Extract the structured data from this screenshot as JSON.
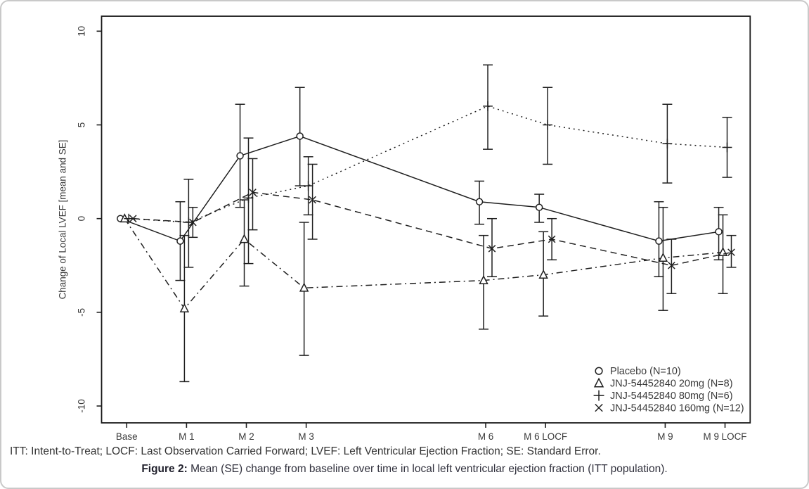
{
  "figure": {
    "footnote": "ITT: Intent-to-Treat; LOCF: Last Observation Carried Forward; LVEF: Left Ventricular Ejection Fraction; SE: Standard Error.",
    "caption_label": "Figure 2:",
    "caption_text": " Mean (SE) change from baseline over time in local left ventricular ejection fraction (ITT population)."
  },
  "chart_data": {
    "type": "line",
    "title": "",
    "xlabel": "",
    "ylabel": "Change of Local LVEF [mean and SE]",
    "ylim": [
      -10.9,
      10.8
    ],
    "yticks": [
      10,
      5,
      0,
      -5,
      -10
    ],
    "ytick_labels": [
      "10",
      "5",
      "0",
      "-5",
      "-10"
    ],
    "x_categories": [
      "Base",
      "M 1",
      "M 2",
      "M 3",
      "M 6",
      "M 6 LOCF",
      "M 9",
      "M 9 LOCF"
    ],
    "x_numeric": [
      0,
      1,
      2,
      3,
      6,
      7,
      9,
      10
    ],
    "x_range": [
      -0.42,
      10.42
    ],
    "grid": false,
    "error_bars": "SE",
    "legend_position": "inside-bottom-right",
    "series": [
      {
        "name": "Placebo (N=10)",
        "marker": "circle",
        "line_style": "solid",
        "x_offset": -9,
        "values": [
          0,
          -1.2,
          3.35,
          4.4,
          0.9,
          0.6,
          -1.2,
          -0.7
        ],
        "error_low": [
          null,
          -3.3,
          0.6,
          1.75,
          -0.3,
          -0.2,
          -3.1,
          -2.2
        ],
        "error_high": [
          null,
          0.9,
          6.1,
          7.0,
          2.0,
          1.3,
          0.9,
          0.6
        ]
      },
      {
        "name": "JNJ-54452840 20mg (N=8)",
        "marker": "triangle",
        "line_style": "dashdot",
        "x_offset": -3,
        "values": [
          0,
          -4.8,
          -1.1,
          -3.7,
          -3.3,
          -3.0,
          -2.1,
          -1.8
        ],
        "error_low": [
          null,
          -8.7,
          -3.6,
          -7.3,
          -5.9,
          -5.2,
          -4.9,
          -4.0
        ],
        "error_high": [
          null,
          -0.9,
          1.0,
          -0.2,
          -0.9,
          -0.7,
          0.6,
          0.2
        ]
      },
      {
        "name": "JNJ-54452840 80mg (N=6)",
        "marker": "plus",
        "line_style": "dotted",
        "x_offset": 3,
        "values": [
          0,
          -0.2,
          1.1,
          1.75,
          6.0,
          5.0,
          4.0,
          3.8
        ],
        "error_low": [
          null,
          -2.6,
          -2.4,
          0.2,
          3.7,
          2.9,
          1.9,
          2.2
        ],
        "error_high": [
          null,
          2.1,
          4.3,
          3.3,
          8.2,
          7.0,
          6.1,
          5.4
        ]
      },
      {
        "name": "JNJ-54452840 160mg (N=12)",
        "marker": "x",
        "line_style": "dashed",
        "x_offset": 9,
        "values": [
          0,
          -0.2,
          1.4,
          1.0,
          -1.6,
          -1.1,
          -2.5,
          -1.8
        ],
        "error_low": [
          null,
          -1.0,
          -0.6,
          -1.1,
          -3.1,
          -2.2,
          -4.0,
          -2.6
        ],
        "error_high": [
          null,
          0.6,
          3.2,
          2.9,
          0.0,
          0.0,
          -1.1,
          -0.9
        ]
      }
    ],
    "colors": {
      "stroke": "#1f1f1f",
      "text": "#3a3a3a",
      "frame": "#1a1a1a",
      "card_border": "#c9c9c9",
      "background": "#ffffff"
    }
  }
}
